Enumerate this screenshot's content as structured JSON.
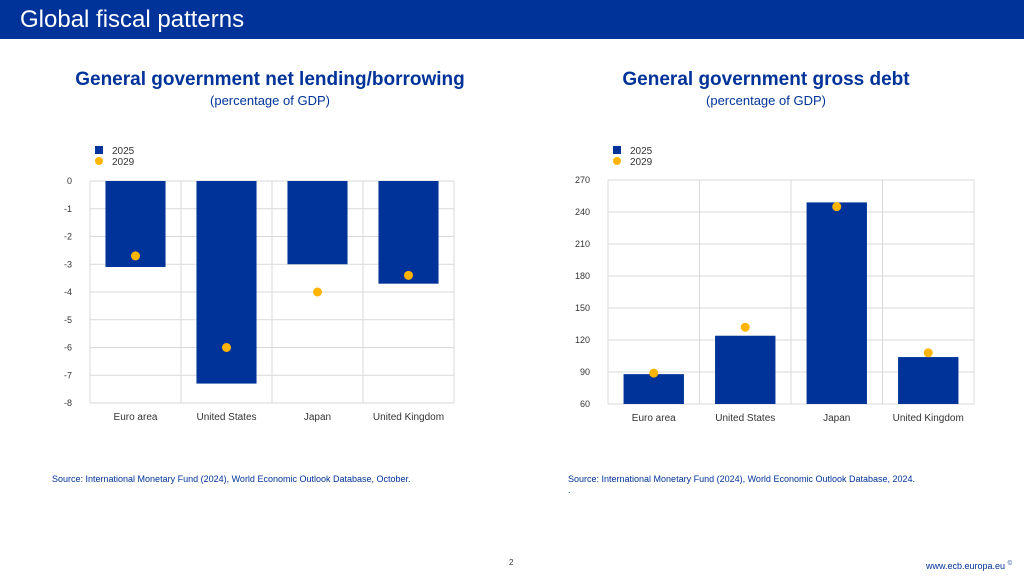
{
  "header": {
    "title": "Global fiscal patterns"
  },
  "colors": {
    "brand": "#003399",
    "bar": "#003399",
    "dot": "#FFB400",
    "grid": "#d9d9d9"
  },
  "chart_data": [
    {
      "type": "bar",
      "title": "General government net lending/borrowing",
      "subtitle": "(percentage of GDP)",
      "categories": [
        "Euro area",
        "United States",
        "Japan",
        "United Kingdom"
      ],
      "series": [
        {
          "name": "2025",
          "kind": "bar",
          "values": [
            -3.1,
            -7.3,
            -3.0,
            -3.7
          ]
        },
        {
          "name": "2029",
          "kind": "dot",
          "values": [
            -2.7,
            -6.0,
            -4.0,
            -3.4
          ]
        }
      ],
      "ylim": [
        -8,
        0
      ],
      "yticks": [
        0,
        -1,
        -2,
        -3,
        -4,
        -5,
        -6,
        -7,
        -8
      ],
      "xlabel": "",
      "ylabel": "",
      "source": "Source: International Monetary Fund (2024), World Economic Outlook Database, October."
    },
    {
      "type": "bar",
      "title": "General government gross debt",
      "subtitle": "(percentage of GDP)",
      "categories": [
        "Euro area",
        "United States",
        "Japan",
        "United Kingdom"
      ],
      "series": [
        {
          "name": "2025",
          "kind": "bar",
          "values": [
            88,
            124,
            249,
            104
          ]
        },
        {
          "name": "2029",
          "kind": "dot",
          "values": [
            89,
            132,
            245,
            108
          ]
        }
      ],
      "ylim": [
        60,
        270
      ],
      "yticks": [
        270,
        240,
        210,
        180,
        150,
        120,
        90,
        60
      ],
      "xlabel": "",
      "ylabel": "",
      "source": "Source: International Monetary Fund (2024), World Economic Outlook Database, 2024.",
      "source_note": "."
    }
  ],
  "footer": {
    "page_number": "2",
    "url": "www.ecb.europa.eu",
    "mark": "©"
  }
}
